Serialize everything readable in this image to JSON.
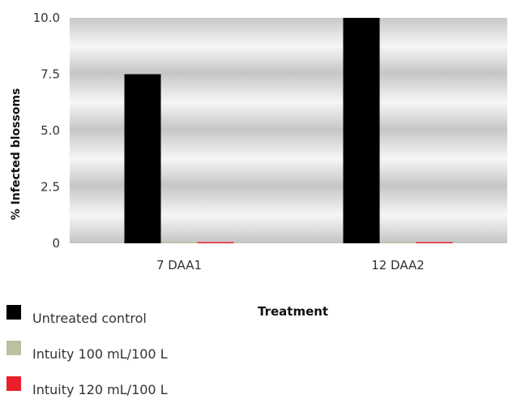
{
  "chart_data": {
    "type": "bar",
    "title": "",
    "xlabel": "Treatment",
    "ylabel": "% Infected blossoms",
    "ylim": [
      0,
      10
    ],
    "yticks": [
      "0",
      "2.5",
      "5.0",
      "7.5",
      "10.0"
    ],
    "categories": [
      "7 DAA1",
      "12 DAA2"
    ],
    "series": [
      {
        "name": "Untreated control",
        "color": "#000000",
        "values": [
          7.5,
          10.0
        ]
      },
      {
        "name": "Intuity 100 mL/100 L",
        "color": "#bcc0a0",
        "values": [
          0,
          0
        ]
      },
      {
        "name": "Intuity 120 mL/100 L",
        "color": "#e8202a",
        "values": [
          0,
          0
        ]
      }
    ],
    "grid": true,
    "legend_position": "bottom-left"
  }
}
